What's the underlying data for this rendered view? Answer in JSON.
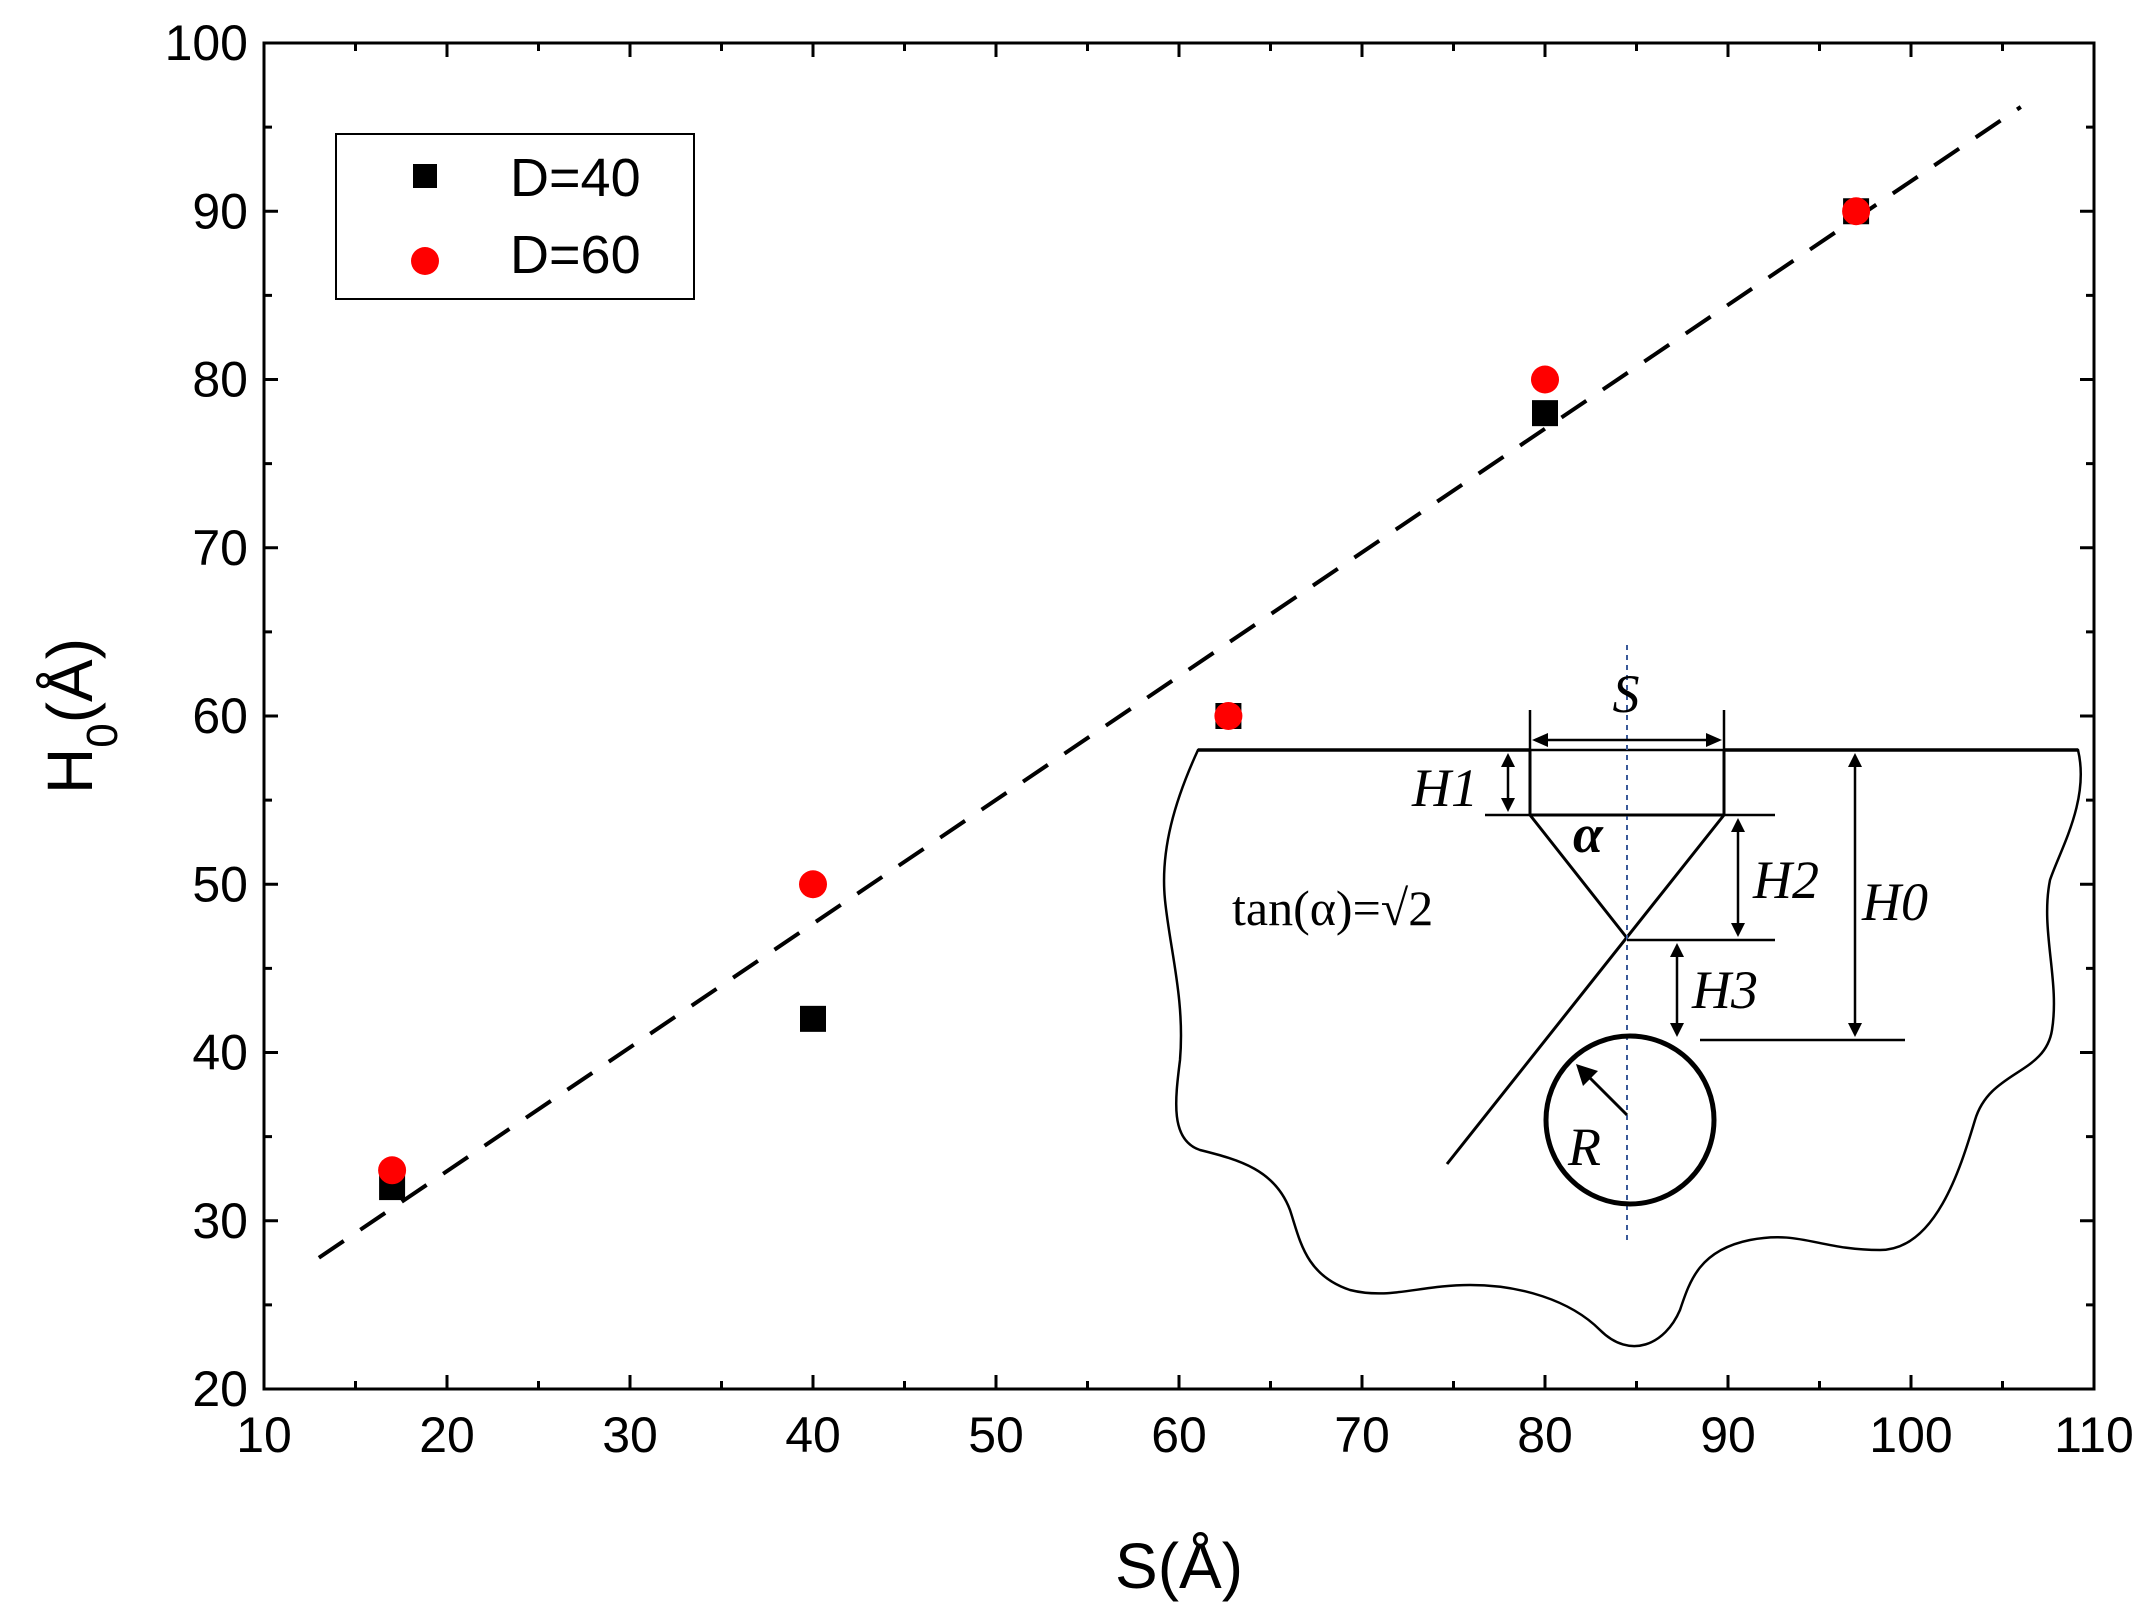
{
  "chart_data": {
    "type": "scatter",
    "xlabel_main": "S",
    "xlabel_unit": "(Å)",
    "ylabel_main": "H",
    "ylabel_sub": "0",
    "ylabel_unit": "(Å)",
    "xlim": [
      10,
      110
    ],
    "ylim": [
      20,
      100
    ],
    "x_ticks": [
      10,
      20,
      30,
      40,
      50,
      60,
      70,
      80,
      90,
      100,
      110
    ],
    "y_ticks": [
      20,
      30,
      40,
      50,
      60,
      70,
      80,
      90,
      100
    ],
    "legend_position": "top-left",
    "series": [
      {
        "name": "D=40",
        "marker": "square",
        "color": "#000000",
        "points": [
          [
            17,
            32
          ],
          [
            40,
            42
          ],
          [
            62.7,
            60
          ],
          [
            80,
            78
          ],
          [
            97,
            90
          ]
        ]
      },
      {
        "name": "D=60",
        "marker": "circle",
        "color": "#ff0000",
        "points": [
          [
            17,
            33
          ],
          [
            40,
            50
          ],
          [
            62.7,
            60
          ],
          [
            80,
            80
          ],
          [
            97,
            90
          ]
        ]
      }
    ],
    "fit_line": {
      "style": "dashed",
      "color": "#000000",
      "from": [
        13,
        27.8
      ],
      "to": [
        106,
        96.2
      ]
    }
  },
  "inset": {
    "label_S": "S",
    "label_H1": "H1",
    "label_H2": "H2",
    "label_H3": "H3",
    "label_H0": "H0",
    "label_alpha": "α",
    "label_R": "R",
    "formula": "tan(α)=√2"
  }
}
